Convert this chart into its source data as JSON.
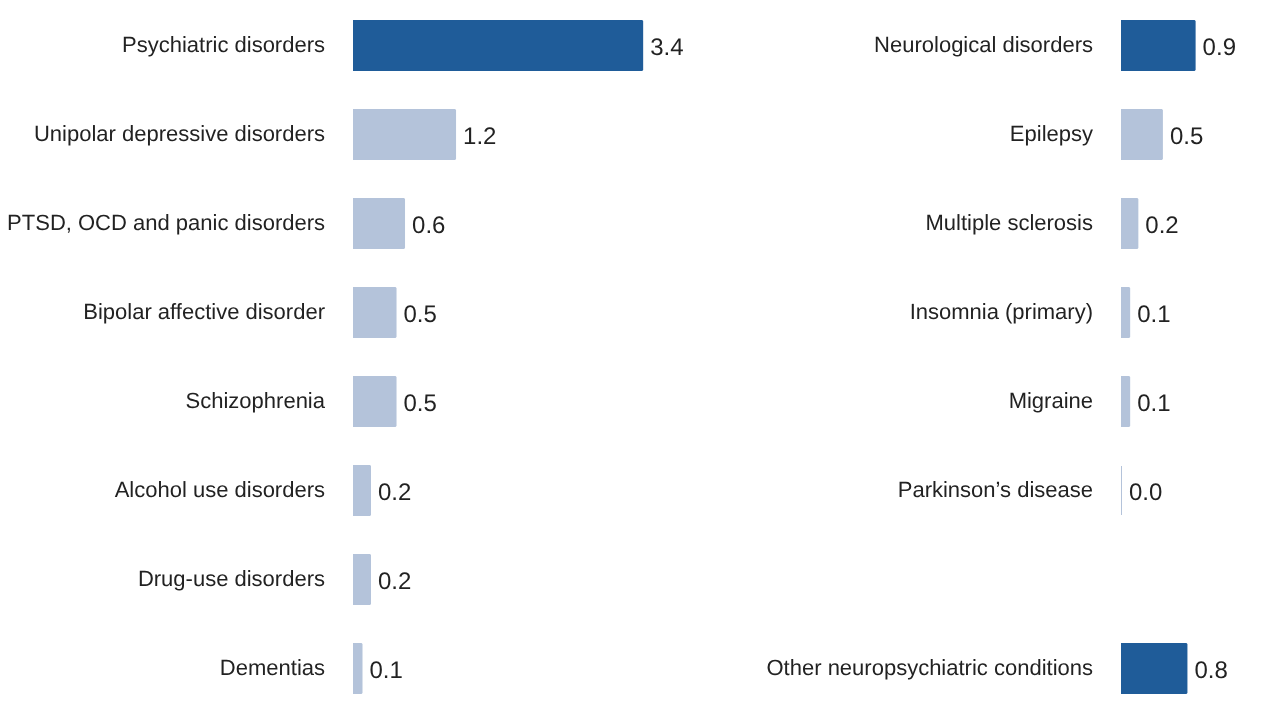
{
  "chart_data": [
    {
      "type": "bar",
      "orientation": "horizontal",
      "tick_labels": "y",
      "data_labels": true,
      "categories": [
        "Psychiatric disorders",
        "Unipolar depressive disorders",
        "PTSD, OCD and panic disorders",
        "Bipolar affective disorder",
        "Schizophrenia",
        "Alcohol use disorders",
        "Drug-use disorders",
        "Dementias"
      ],
      "values": [
        3.4,
        1.2,
        0.6,
        0.5,
        0.5,
        0.2,
        0.2,
        0.1
      ],
      "colors": [
        "#1f5c99",
        "#b4c3da",
        "#b4c3da",
        "#b4c3da",
        "#b4c3da",
        "#b4c3da",
        "#b4c3da",
        "#b4c3da"
      ]
    },
    {
      "type": "bar",
      "orientation": "horizontal",
      "tick_labels": "y",
      "categories": [
        "Neurological disorders",
        "Epilepsy",
        "Multiple sclerosis",
        "Insomnia (primary)",
        "Migraine",
        "Parkinson’s disease",
        null,
        "Other neuropsychiatric conditions"
      ],
      "values": [
        0.9,
        0.5,
        0.2,
        0.1,
        0.1,
        0.0,
        null,
        0.8
      ],
      "value_labels": [
        "0.9",
        "0.5",
        "0.2",
        "0.1",
        "0.1",
        "0.0",
        null,
        "0.8"
      ],
      "colors": [
        "#1f5c99",
        "#b4c3da",
        "#b4c3da",
        "#b4c3da",
        "#b4c3da",
        "#b4c3da",
        "#b4c3da",
        "#1f5c99"
      ]
    }
  ]
}
